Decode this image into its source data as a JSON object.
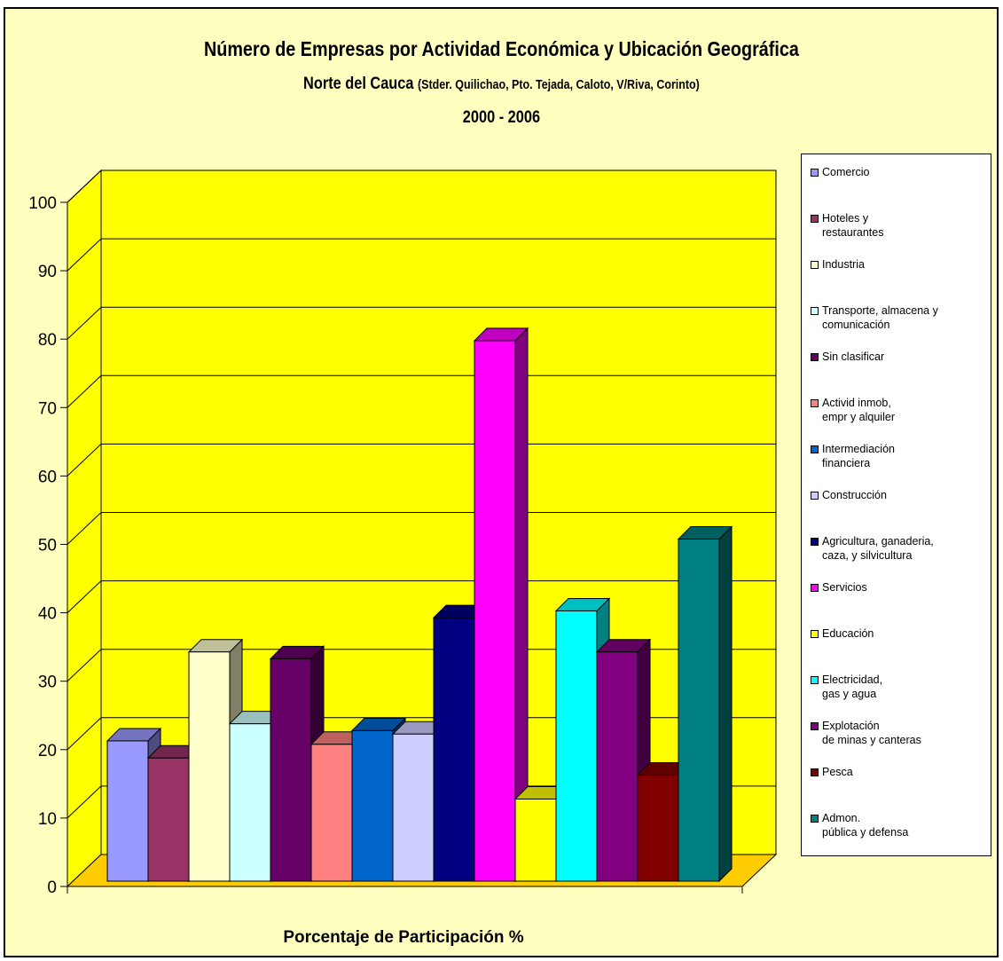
{
  "chart_data": {
    "type": "bar",
    "title": "Número de Empresas por Actividad Económica y Ubicación Geográfica",
    "subtitle_main": "Norte del Cauca",
    "subtitle_detail": "(Stder. Quilichao, Pto. Tejada, Caloto, V/Riva, Corinto)",
    "period": "2000 - 2006",
    "xlabel": "Porcentaje de Participación %",
    "ylim": [
      0,
      100
    ],
    "yticks": [
      "0",
      "10",
      "20",
      "30",
      "40",
      "50",
      "60",
      "70",
      "80",
      "90",
      "100"
    ],
    "legend_position": "right",
    "grid": true,
    "series": [
      {
        "name": "Comercio",
        "legend_lines": [
          "Comercio"
        ],
        "value": 20.5,
        "color": "#9999ff"
      },
      {
        "name": "Hoteles y restaurantes",
        "legend_lines": [
          "Hoteles y",
          "restaurantes"
        ],
        "value": 18,
        "color": "#993366"
      },
      {
        "name": "Industria",
        "legend_lines": [
          "Industria"
        ],
        "value": 33.5,
        "color": "#ffffcc"
      },
      {
        "name": "Transporte, almacena y comunicación",
        "legend_lines": [
          "Transporte, almacena y",
          "comunicación"
        ],
        "value": 23,
        "color": "#ccffff"
      },
      {
        "name": "Sin clasificar",
        "legend_lines": [
          "Sin clasificar"
        ],
        "value": 32.5,
        "color": "#660066"
      },
      {
        "name": "Activid inmob, empr y alquiler",
        "legend_lines": [
          "Activid inmob,",
          "empr y alquiler"
        ],
        "value": 20,
        "color": "#ff8080"
      },
      {
        "name": "Intermediación financiera",
        "legend_lines": [
          "Intermediación",
          "financiera"
        ],
        "value": 22,
        "color": "#0066cc"
      },
      {
        "name": "Construcción",
        "legend_lines": [
          "Construcción"
        ],
        "value": 21.5,
        "color": "#ccccff"
      },
      {
        "name": "Agricultura, ganaderia, caza, y silvicultura",
        "legend_lines": [
          "Agricultura, ganaderia,",
          "caza, y silvicultura"
        ],
        "value": 38.5,
        "color": "#000080"
      },
      {
        "name": "Servicios",
        "legend_lines": [
          "Servicios"
        ],
        "value": 79,
        "color": "#ff00ff"
      },
      {
        "name": "Educación",
        "legend_lines": [
          "Educación"
        ],
        "value": 12,
        "color": "#ffff00"
      },
      {
        "name": "Electricidad, gas y agua",
        "legend_lines": [
          "Electricidad,",
          "gas y agua"
        ],
        "value": 39.5,
        "color": "#00ffff"
      },
      {
        "name": "Explotación de minas y canteras",
        "legend_lines": [
          "Explotación",
          "de minas y canteras"
        ],
        "value": 33.5,
        "color": "#800080"
      },
      {
        "name": "Pesca",
        "legend_lines": [
          "Pesca"
        ],
        "value": 15.5,
        "color": "#800000"
      },
      {
        "name": "Admon. pública y defensa",
        "legend_lines": [
          "Admon.",
          "pública y defensa"
        ],
        "value": 50,
        "color": "#008080"
      }
    ],
    "colors": {
      "wall": "#ffff00",
      "floor": "#ffcc00",
      "background": "#ffffc0"
    }
  }
}
